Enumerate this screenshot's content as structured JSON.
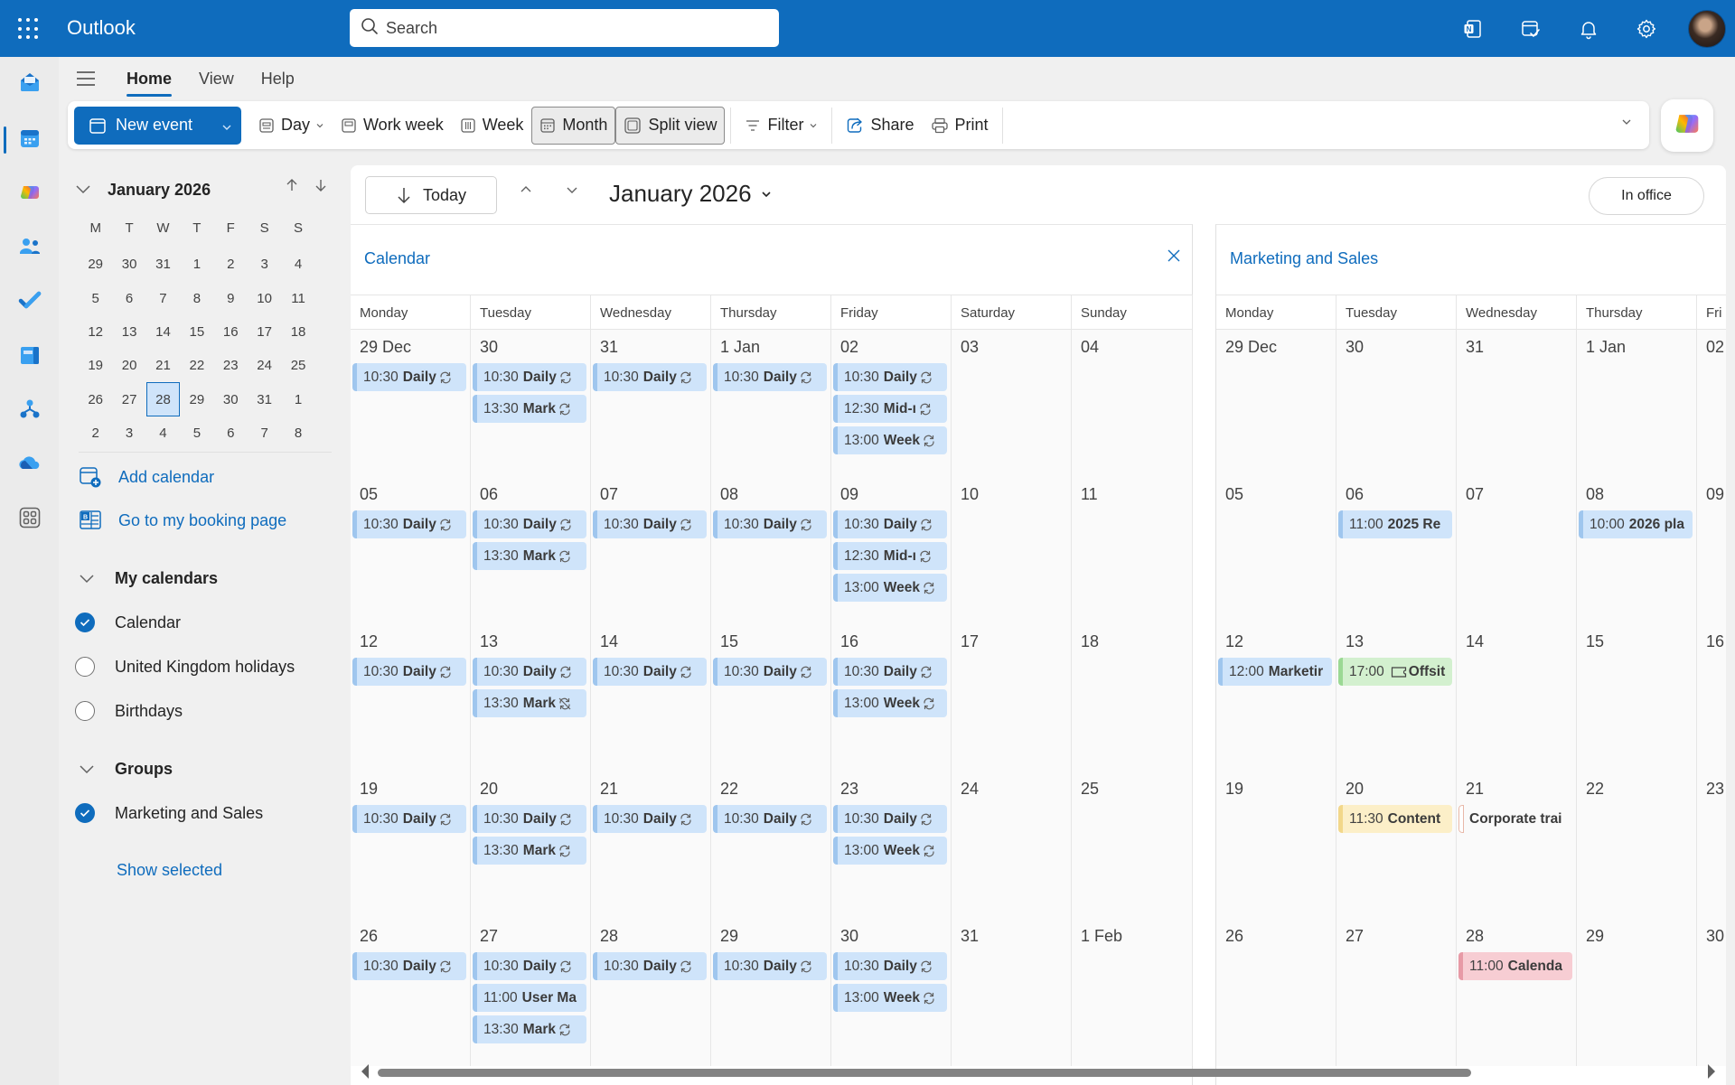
{
  "header": {
    "app_name": "Outlook",
    "search_placeholder": "Search",
    "icons": [
      "apps-waffle-icon",
      "onenote-icon",
      "my-day-icon",
      "notification-bell-icon",
      "settings-gear-icon",
      "avatar"
    ],
    "brand_color": "#0f6cbd"
  },
  "rail": {
    "items": [
      {
        "name": "mail",
        "icon": "mail-icon"
      },
      {
        "name": "calendar",
        "icon": "calendar-icon",
        "active": true
      },
      {
        "name": "copilot",
        "icon": "copilot-icon"
      },
      {
        "name": "people",
        "icon": "people-icon"
      },
      {
        "name": "todo",
        "icon": "todo-check-icon"
      },
      {
        "name": "bookings",
        "icon": "bookings-icon"
      },
      {
        "name": "org-explorer",
        "icon": "org-explorer-icon"
      },
      {
        "name": "onedrive",
        "icon": "onedrive-icon"
      },
      {
        "name": "more-apps",
        "icon": "more-apps-icon"
      }
    ]
  },
  "ribbon": {
    "tabs": [
      {
        "label": "Home",
        "active": true
      },
      {
        "label": "View"
      },
      {
        "label": "Help"
      }
    ],
    "toolbar": {
      "new_event": "New event",
      "day": "Day",
      "work_week": "Work week",
      "week": "Week",
      "month": "Month",
      "split_view": "Split view",
      "filter": "Filter",
      "share": "Share",
      "print": "Print"
    }
  },
  "mini_calendar": {
    "title": "January 2026",
    "weekdays": [
      "M",
      "T",
      "W",
      "T",
      "F",
      "S",
      "S"
    ],
    "weeks": [
      [
        "29",
        "30",
        "31",
        "1",
        "2",
        "3",
        "4"
      ],
      [
        "5",
        "6",
        "7",
        "8",
        "9",
        "10",
        "11"
      ],
      [
        "12",
        "13",
        "14",
        "15",
        "16",
        "17",
        "18"
      ],
      [
        "19",
        "20",
        "21",
        "22",
        "23",
        "24",
        "25"
      ],
      [
        "26",
        "27",
        "28",
        "29",
        "30",
        "31",
        "1"
      ],
      [
        "2",
        "3",
        "4",
        "5",
        "6",
        "7",
        "8"
      ]
    ],
    "selected": "28"
  },
  "left_pane": {
    "add_calendar": "Add calendar",
    "booking_page": "Go to my booking page",
    "my_calendars": {
      "label": "My calendars",
      "items": [
        {
          "label": "Calendar",
          "checked": true
        },
        {
          "label": "United Kingdom holidays",
          "checked": false
        },
        {
          "label": "Birthdays",
          "checked": false
        }
      ]
    },
    "groups": {
      "label": "Groups",
      "items": [
        {
          "label": "Marketing and Sales",
          "checked": true
        }
      ]
    },
    "show_selected": "Show selected"
  },
  "datebar": {
    "today": "Today",
    "month_title": "January 2026",
    "in_office": "In office"
  },
  "calendar_panel": {
    "title": "Calendar",
    "weekdays": [
      "Monday",
      "Tuesday",
      "Wednesday",
      "Thursday",
      "Friday",
      "Saturday",
      "Sunday"
    ],
    "weeks": [
      [
        {
          "day": "29 Dec",
          "events": [
            {
              "time": "10:30",
              "name": "Daily",
              "recur": true
            }
          ]
        },
        {
          "day": "30",
          "events": [
            {
              "time": "10:30",
              "name": "Daily",
              "recur": true
            },
            {
              "time": "13:30",
              "name": "Mark",
              "recur": true
            }
          ]
        },
        {
          "day": "31",
          "events": [
            {
              "time": "10:30",
              "name": "Daily",
              "recur": true
            }
          ]
        },
        {
          "day": "1 Jan",
          "events": [
            {
              "time": "10:30",
              "name": "Daily",
              "recur": true
            }
          ]
        },
        {
          "day": "02",
          "events": [
            {
              "time": "10:30",
              "name": "Daily",
              "recur": true
            },
            {
              "time": "12:30",
              "name": "Mid-ı",
              "recur": true
            },
            {
              "time": "13:00",
              "name": "Week",
              "recur": true
            }
          ]
        },
        {
          "day": "03",
          "events": []
        },
        {
          "day": "04",
          "events": []
        }
      ],
      [
        {
          "day": "05",
          "events": [
            {
              "time": "10:30",
              "name": "Daily",
              "recur": true
            }
          ]
        },
        {
          "day": "06",
          "events": [
            {
              "time": "10:30",
              "name": "Daily",
              "recur": true
            },
            {
              "time": "13:30",
              "name": "Mark",
              "recur": true
            }
          ]
        },
        {
          "day": "07",
          "events": [
            {
              "time": "10:30",
              "name": "Daily",
              "recur": true
            }
          ]
        },
        {
          "day": "08",
          "events": [
            {
              "time": "10:30",
              "name": "Daily",
              "recur": true
            }
          ]
        },
        {
          "day": "09",
          "events": [
            {
              "time": "10:30",
              "name": "Daily",
              "recur": true
            },
            {
              "time": "12:30",
              "name": "Mid-ı",
              "recur": true
            },
            {
              "time": "13:00",
              "name": "Week",
              "recur": true
            }
          ]
        },
        {
          "day": "10",
          "events": []
        },
        {
          "day": "11",
          "events": []
        }
      ],
      [
        {
          "day": "12",
          "events": [
            {
              "time": "10:30",
              "name": "Daily",
              "recur": true
            }
          ]
        },
        {
          "day": "13",
          "events": [
            {
              "time": "10:30",
              "name": "Daily",
              "recur": true
            },
            {
              "time": "13:30",
              "name": "Mark",
              "recur": "exception"
            }
          ]
        },
        {
          "day": "14",
          "events": [
            {
              "time": "10:30",
              "name": "Daily",
              "recur": true
            }
          ]
        },
        {
          "day": "15",
          "events": [
            {
              "time": "10:30",
              "name": "Daily",
              "recur": true
            }
          ]
        },
        {
          "day": "16",
          "events": [
            {
              "time": "10:30",
              "name": "Daily",
              "recur": true
            },
            {
              "time": "13:00",
              "name": "Week",
              "recur": true
            }
          ]
        },
        {
          "day": "17",
          "events": []
        },
        {
          "day": "18",
          "events": []
        }
      ],
      [
        {
          "day": "19",
          "events": [
            {
              "time": "10:30",
              "name": "Daily",
              "recur": true
            }
          ]
        },
        {
          "day": "20",
          "events": [
            {
              "time": "10:30",
              "name": "Daily",
              "recur": true
            },
            {
              "time": "13:30",
              "name": "Mark",
              "recur": true
            }
          ]
        },
        {
          "day": "21",
          "events": [
            {
              "time": "10:30",
              "name": "Daily",
              "recur": true
            }
          ]
        },
        {
          "day": "22",
          "events": [
            {
              "time": "10:30",
              "name": "Daily",
              "recur": true
            }
          ]
        },
        {
          "day": "23",
          "events": [
            {
              "time": "10:30",
              "name": "Daily",
              "recur": true
            },
            {
              "time": "13:00",
              "name": "Week",
              "recur": true
            }
          ]
        },
        {
          "day": "24",
          "events": []
        },
        {
          "day": "25",
          "events": []
        }
      ],
      [
        {
          "day": "26",
          "events": [
            {
              "time": "10:30",
              "name": "Daily",
              "recur": true
            }
          ]
        },
        {
          "day": "27",
          "events": [
            {
              "time": "10:30",
              "name": "Daily",
              "recur": true
            },
            {
              "time": "11:00",
              "name": "User Ma",
              "recur": false
            },
            {
              "time": "13:30",
              "name": "Mark",
              "recur": true
            }
          ]
        },
        {
          "day": "28",
          "events": [
            {
              "time": "10:30",
              "name": "Daily",
              "recur": true
            }
          ]
        },
        {
          "day": "29",
          "events": [
            {
              "time": "10:30",
              "name": "Daily",
              "recur": true
            }
          ]
        },
        {
          "day": "30",
          "events": [
            {
              "time": "10:30",
              "name": "Daily",
              "recur": true
            },
            {
              "time": "13:00",
              "name": "Week",
              "recur": true
            }
          ]
        },
        {
          "day": "31",
          "events": []
        },
        {
          "day": "1 Feb",
          "events": []
        }
      ]
    ]
  },
  "marketing_panel": {
    "title": "Marketing and Sales",
    "weekdays": [
      "Monday",
      "Tuesday",
      "Wednesday",
      "Thursday",
      "Fri"
    ],
    "weeks": [
      [
        {
          "day": "29 Dec",
          "events": []
        },
        {
          "day": "30",
          "events": []
        },
        {
          "day": "31",
          "events": []
        },
        {
          "day": "1 Jan",
          "events": []
        },
        {
          "day": "02",
          "events": []
        }
      ],
      [
        {
          "day": "05",
          "events": []
        },
        {
          "day": "06",
          "events": [
            {
              "time": "11:00",
              "name": "2025 Re",
              "color": "blue"
            }
          ]
        },
        {
          "day": "07",
          "events": []
        },
        {
          "day": "08",
          "events": [
            {
              "time": "10:00",
              "name": "2026 pla",
              "color": "blue"
            }
          ]
        },
        {
          "day": "09",
          "events": []
        }
      ],
      [
        {
          "day": "12",
          "events": [
            {
              "time": "12:00",
              "name": "Marketir",
              "color": "blue"
            }
          ]
        },
        {
          "day": "13",
          "events": [
            {
              "time": "17:00",
              "name": "Offsit",
              "color": "green",
              "icon": "ticket-icon"
            }
          ]
        },
        {
          "day": "14",
          "events": []
        },
        {
          "day": "15",
          "events": []
        },
        {
          "day": "16",
          "events": []
        }
      ],
      [
        {
          "day": "19",
          "events": []
        },
        {
          "day": "20",
          "events": [
            {
              "time": "11:30",
              "name": "Content",
              "color": "yellow"
            }
          ]
        },
        {
          "day": "21",
          "events": [
            {
              "time": "",
              "name": "Corporate trai",
              "color": "outline"
            }
          ]
        },
        {
          "day": "22",
          "events": []
        },
        {
          "day": "23",
          "events": []
        }
      ],
      [
        {
          "day": "26",
          "events": []
        },
        {
          "day": "27",
          "events": []
        },
        {
          "day": "28",
          "events": [
            {
              "time": "11:00",
              "name": "Calenda",
              "color": "red"
            }
          ]
        },
        {
          "day": "29",
          "events": []
        },
        {
          "day": "30",
          "events": []
        }
      ]
    ]
  }
}
